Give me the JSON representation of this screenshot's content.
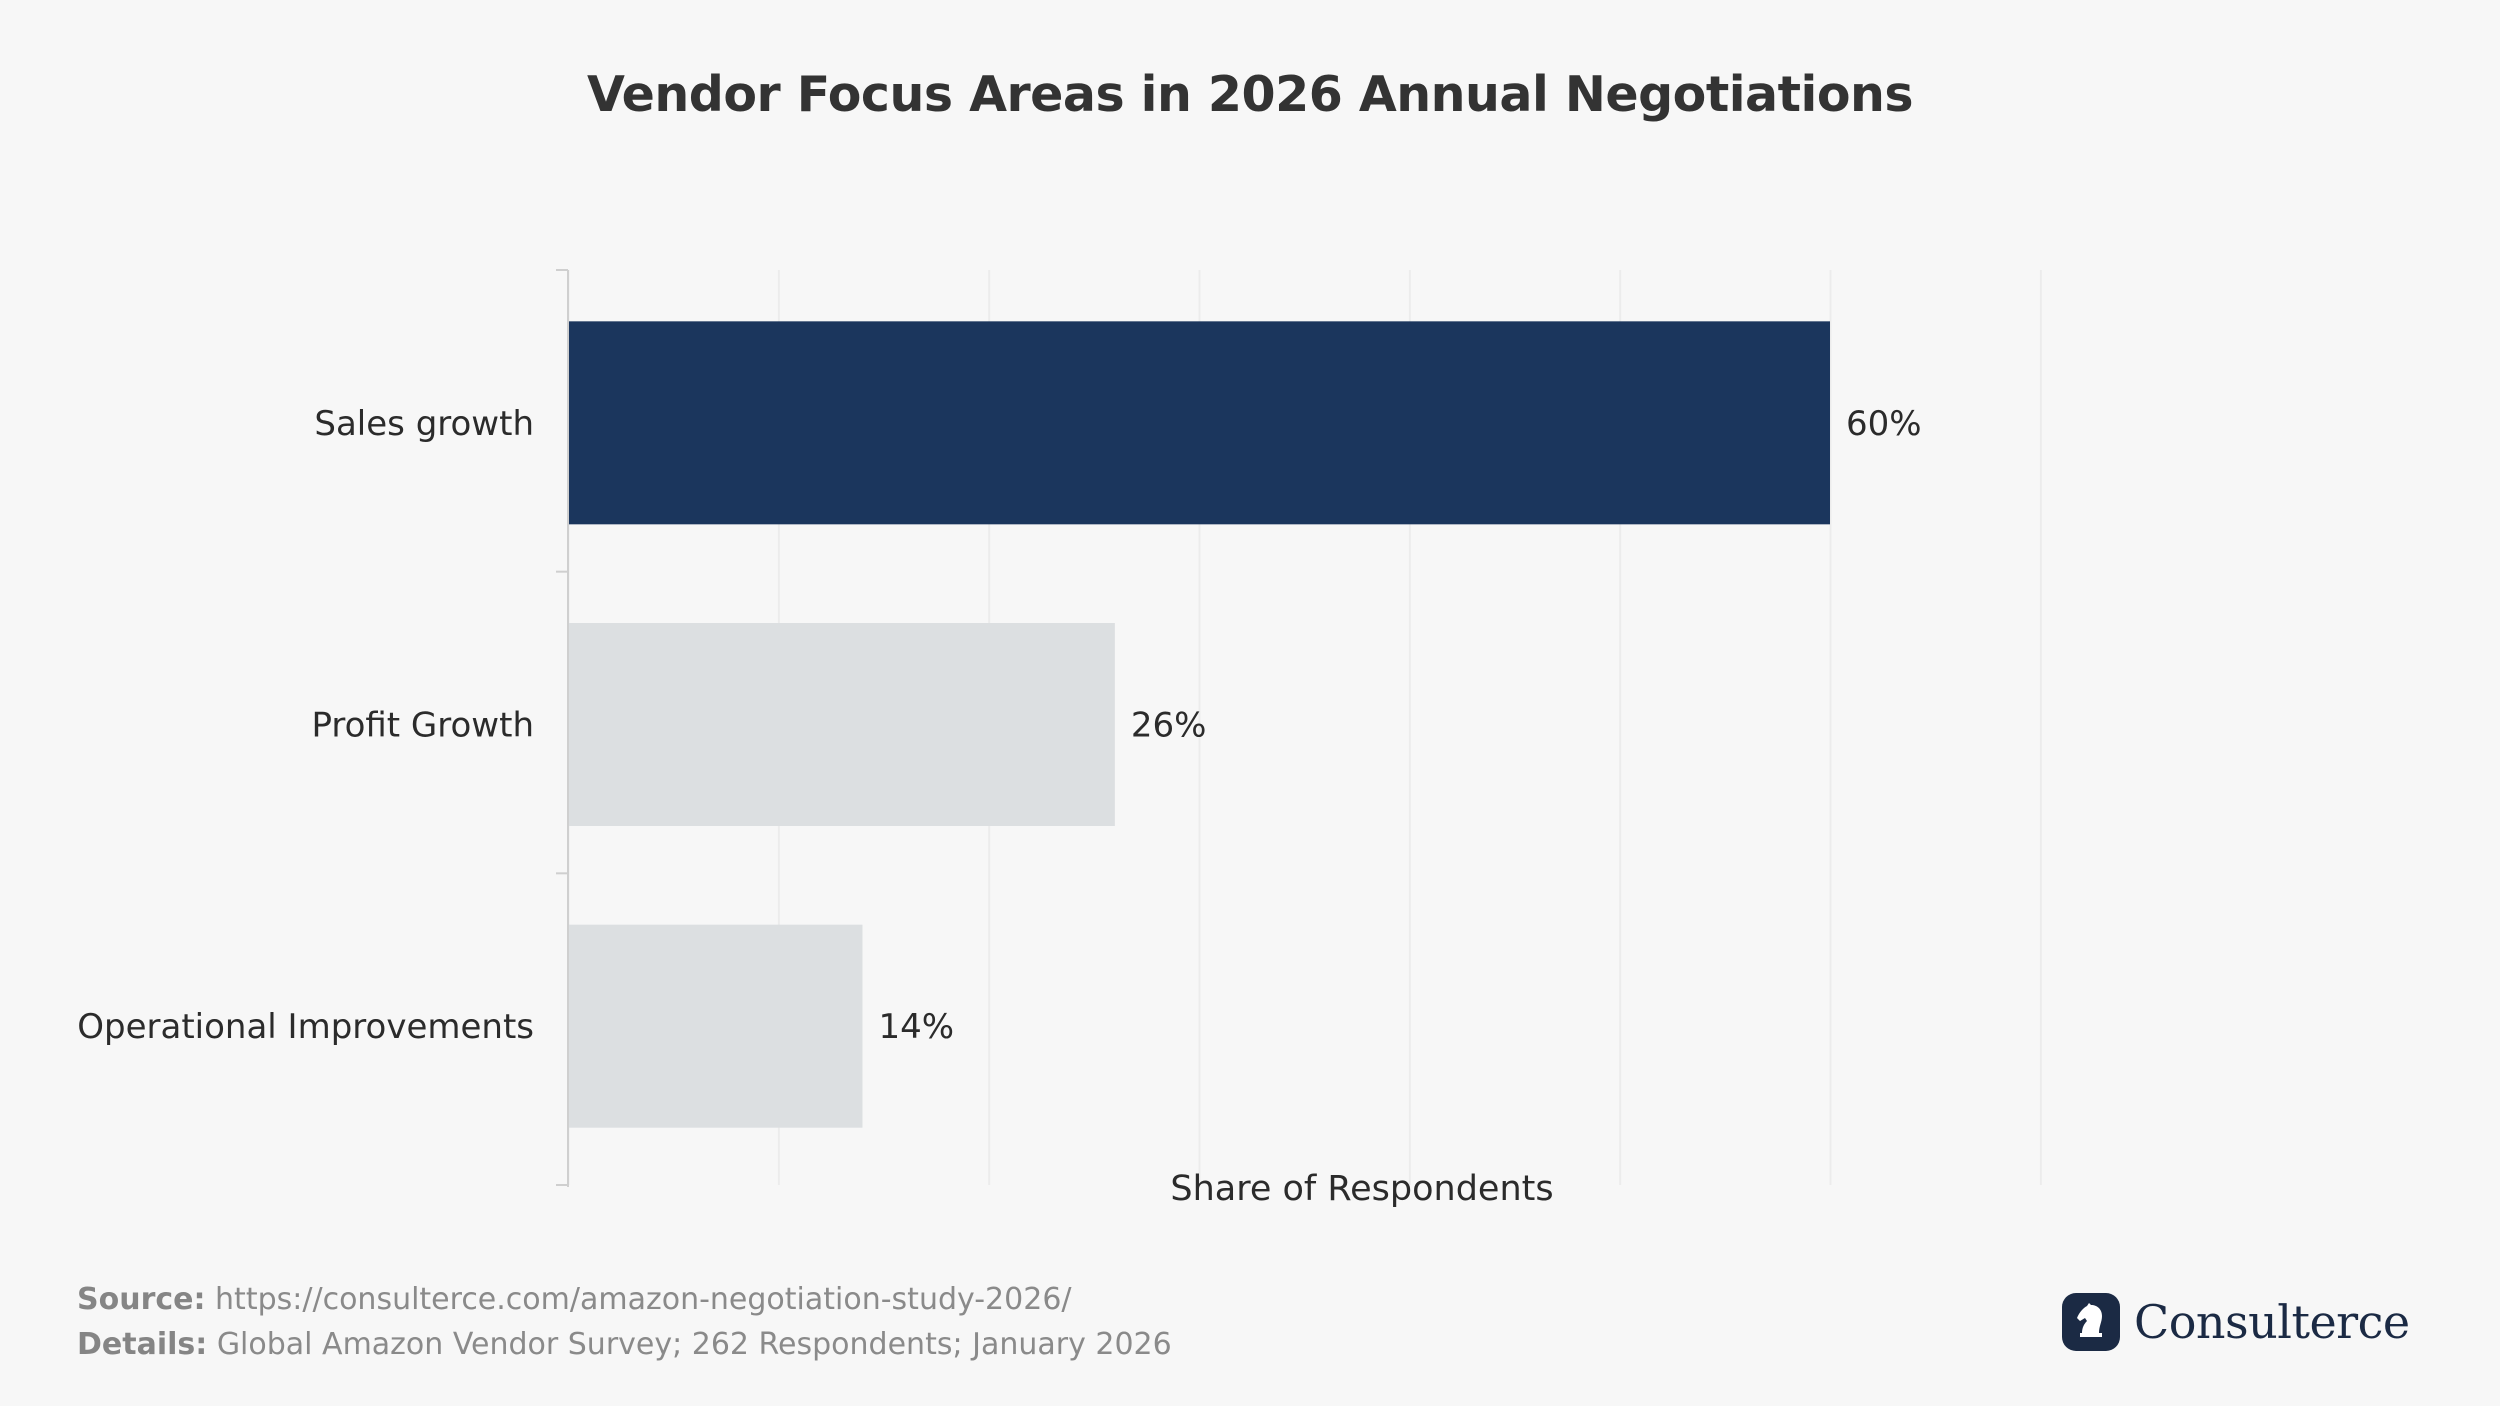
{
  "chart_data": {
    "type": "bar",
    "orientation": "horizontal",
    "title": "Vendor Focus Areas in 2026 Annual Negotiations",
    "categories": [
      "Sales growth",
      "Profit Growth",
      "Operational Improvements"
    ],
    "values": [
      60,
      26,
      14
    ],
    "value_labels": [
      "60%",
      "26%",
      "14%"
    ],
    "highlight_index": 0,
    "xlabel": "Share of Respondents",
    "ylabel": "",
    "xlim": [
      0,
      70
    ],
    "grid": "vertical",
    "colors": {
      "highlight": "#1b365d",
      "default": "#dcdfe1",
      "grid": "#ececec",
      "axis": "#cfcfcf"
    }
  },
  "footer": {
    "source_label": "Source:",
    "source_text": "https://consulterce.com/amazon-negotiation-study-2026/",
    "details_label": "Details:",
    "details_text": "Global Amazon Vendor Survey; 262 Respondents; January 2026"
  },
  "brand": {
    "name": "Consulterce",
    "icon": "knight-chess-icon",
    "color": "#1b2a44"
  }
}
